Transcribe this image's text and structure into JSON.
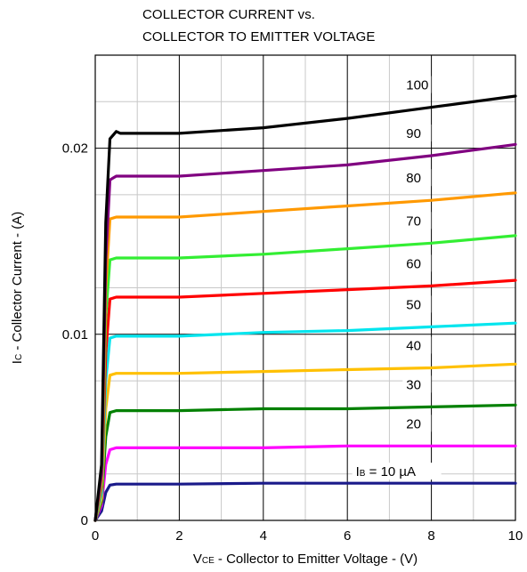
{
  "chart_data": {
    "type": "line",
    "title": [
      "COLLECTOR CURRENT vs.",
      "COLLECTOR TO EMITTER VOLTAGE"
    ],
    "xlabel": {
      "main": "V",
      "sub": "CE",
      "rest": " - Collector to Emitter Voltage - (V)"
    },
    "ylabel": {
      "main": "I",
      "sub": "C",
      "rest": " - Collector Current - (A)"
    },
    "xlim": [
      0,
      10
    ],
    "ylim": [
      0,
      0.025
    ],
    "x_ticks": [
      0,
      2,
      4,
      6,
      8,
      10
    ],
    "x_tick_labels": [
      "0",
      "2",
      "4",
      "6",
      "8",
      "10"
    ],
    "y_ticks": [
      0,
      0.01,
      0.02
    ],
    "y_tick_labels": [
      "0",
      "0.01",
      "0.02"
    ],
    "grid": true,
    "series": [
      {
        "name": "10 µA",
        "label": {
          "main": "I",
          "sub": "B",
          "rest": " = 10 µA"
        },
        "color": "#1a1a8a",
        "x": [
          0,
          0.15,
          0.25,
          0.35,
          0.5,
          2,
          4,
          6,
          8,
          10
        ],
        "y": [
          0,
          0.0005,
          0.0015,
          0.0019,
          0.00195,
          0.00195,
          0.002,
          0.002,
          0.002,
          0.002
        ]
      },
      {
        "name": "20",
        "label": {
          "main": "20"
        },
        "color": "#ff00ff",
        "x": [
          0,
          0.15,
          0.25,
          0.35,
          0.5,
          2,
          4,
          6,
          8,
          10
        ],
        "y": [
          0,
          0.0008,
          0.003,
          0.0038,
          0.0039,
          0.0039,
          0.0039,
          0.004,
          0.004,
          0.004
        ]
      },
      {
        "name": "30",
        "label": {
          "main": "30"
        },
        "color": "#008000",
        "x": [
          0,
          0.15,
          0.25,
          0.35,
          0.5,
          2,
          4,
          6,
          8,
          10
        ],
        "y": [
          0,
          0.001,
          0.0045,
          0.0058,
          0.0059,
          0.0059,
          0.006,
          0.006,
          0.0061,
          0.0062
        ]
      },
      {
        "name": "40",
        "label": {
          "main": "40"
        },
        "color": "#ffc000",
        "x": [
          0,
          0.15,
          0.25,
          0.35,
          0.5,
          2,
          4,
          6,
          8,
          10
        ],
        "y": [
          0,
          0.0012,
          0.006,
          0.0078,
          0.0079,
          0.0079,
          0.008,
          0.0081,
          0.0082,
          0.0084
        ]
      },
      {
        "name": "50",
        "label": {
          "main": "50"
        },
        "color": "#00e5ee",
        "x": [
          0,
          0.15,
          0.25,
          0.35,
          0.5,
          2,
          4,
          6,
          8,
          10
        ],
        "y": [
          0,
          0.0015,
          0.0075,
          0.0098,
          0.0099,
          0.0099,
          0.0101,
          0.0102,
          0.0104,
          0.0106
        ]
      },
      {
        "name": "60",
        "label": {
          "main": "60"
        },
        "color": "#ff0000",
        "x": [
          0,
          0.15,
          0.25,
          0.35,
          0.5,
          2,
          4,
          6,
          8,
          10
        ],
        "y": [
          0,
          0.0018,
          0.009,
          0.0119,
          0.012,
          0.012,
          0.0122,
          0.0124,
          0.0126,
          0.0129
        ]
      },
      {
        "name": "70",
        "label": {
          "main": "70"
        },
        "color": "#33ee33",
        "x": [
          0,
          0.15,
          0.25,
          0.35,
          0.5,
          2,
          4,
          6,
          8,
          10
        ],
        "y": [
          0,
          0.002,
          0.011,
          0.014,
          0.0141,
          0.0141,
          0.0143,
          0.0146,
          0.0149,
          0.0153
        ]
      },
      {
        "name": "80",
        "label": {
          "main": "80"
        },
        "color": "#ff9900",
        "x": [
          0,
          0.15,
          0.25,
          0.35,
          0.5,
          2,
          4,
          6,
          8,
          10
        ],
        "y": [
          0,
          0.0022,
          0.0125,
          0.0162,
          0.0163,
          0.0163,
          0.0166,
          0.0169,
          0.0172,
          0.0176
        ]
      },
      {
        "name": "90",
        "label": {
          "main": "90"
        },
        "color": "#800080",
        "x": [
          0,
          0.15,
          0.25,
          0.35,
          0.5,
          2,
          4,
          6,
          8,
          10
        ],
        "y": [
          0,
          0.0025,
          0.014,
          0.0183,
          0.0185,
          0.0185,
          0.0188,
          0.0191,
          0.0196,
          0.0202
        ]
      },
      {
        "name": "100",
        "label": {
          "main": "100"
        },
        "color": "#000000",
        "x": [
          0,
          0.15,
          0.25,
          0.35,
          0.5,
          0.6,
          2,
          4,
          6,
          8,
          10
        ],
        "y": [
          0,
          0.003,
          0.016,
          0.0205,
          0.0209,
          0.0208,
          0.0208,
          0.0211,
          0.0216,
          0.0222,
          0.0228
        ]
      }
    ]
  }
}
